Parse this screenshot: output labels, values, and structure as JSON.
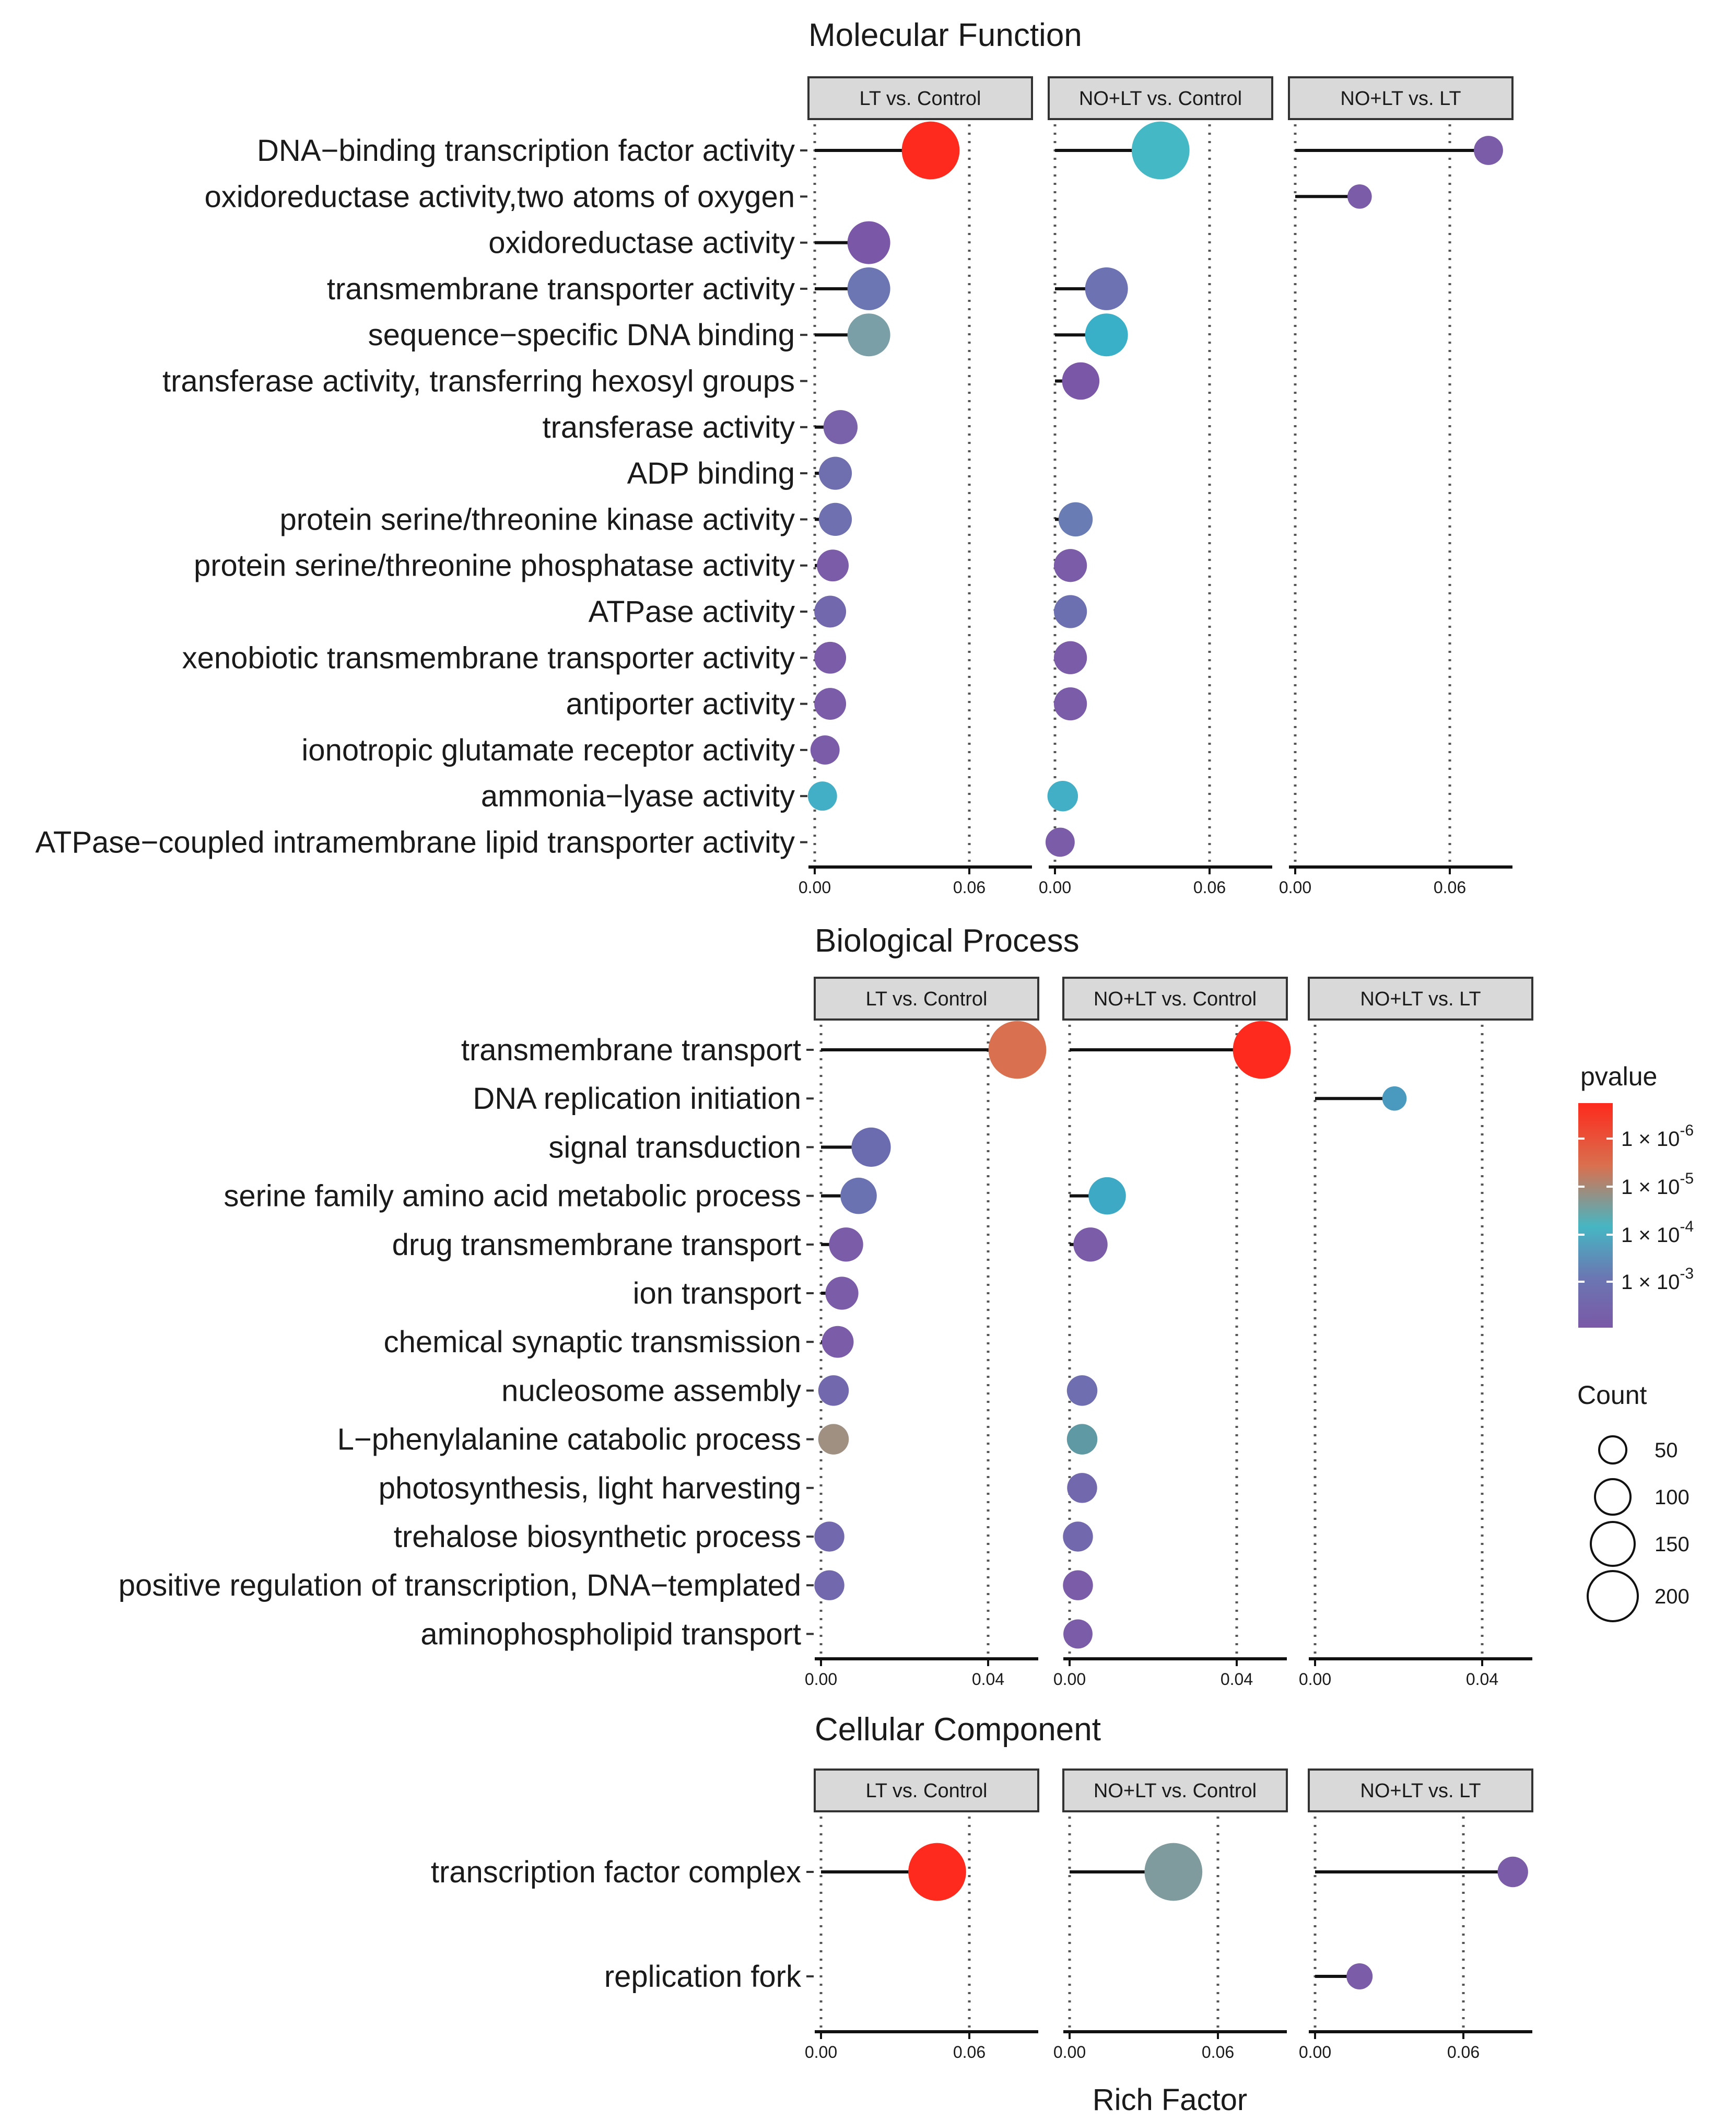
{
  "chart_data": {
    "type": "lollipop",
    "x_title": "Rich Factor",
    "legend": {
      "color_title": "pvalue",
      "color_ticks": [
        "1 × 10^-6",
        "1 × 10^-5",
        "1 × 10^-4",
        "1 × 10^-3"
      ],
      "color_scale": [
        "#fd2a1d",
        "#d9704f",
        "#46b6c3",
        "#6b76b2",
        "#7a58a7"
      ],
      "size_title": "Count",
      "size_values": [
        50,
        100,
        150,
        200
      ]
    },
    "facet_labels": [
      "LT vs. Control",
      "NO+LT vs. Control",
      "NO+LT vs. LT"
    ],
    "panels": [
      {
        "title": "Molecular Function",
        "x_ticks": [
          "0.00",
          "0.06"
        ],
        "xlim": [
          0,
          0.085
        ],
        "terms": [
          "DNA−binding transcription factor activity",
          "oxidoreductase activity,two atoms of oxygen",
          "oxidoreductase activity",
          "transmembrane transporter activity",
          "sequence−specific DNA binding",
          "transferase activity, transferring hexosyl groups",
          "transferase activity",
          "ADP binding",
          "protein serine/threonine kinase activity",
          "protein serine/threonine phosphatase activity",
          "ATPase activity",
          "xenobiotic transmembrane transporter activity",
          "antiporter activity",
          "ionotropic glutamate receptor activity",
          "ammonia−lyase activity",
          "ATPase−coupled intramembrane lipid transporter activity"
        ],
        "facets": [
          [
            {
              "term": 0,
              "x": 0.045,
              "count": 210,
              "color": "#fd2a1d"
            },
            {
              "term": 2,
              "x": 0.021,
              "count": 100,
              "color": "#7a58a7"
            },
            {
              "term": 3,
              "x": 0.021,
              "count": 100,
              "color": "#6b76b2"
            },
            {
              "term": 4,
              "x": 0.021,
              "count": 100,
              "color": "#7a9fa6"
            },
            {
              "term": 6,
              "x": 0.01,
              "count": 55,
              "color": "#7a62ab"
            },
            {
              "term": 7,
              "x": 0.008,
              "count": 50,
              "color": "#6f6fb0"
            },
            {
              "term": 8,
              "x": 0.008,
              "count": 50,
              "color": "#6e70b0"
            },
            {
              "term": 9,
              "x": 0.007,
              "count": 45,
              "color": "#7a5ca8"
            },
            {
              "term": 10,
              "x": 0.006,
              "count": 45,
              "color": "#7268ae"
            },
            {
              "term": 11,
              "x": 0.006,
              "count": 45,
              "color": "#7a5ca8"
            },
            {
              "term": 12,
              "x": 0.006,
              "count": 45,
              "color": "#7a5ca8"
            },
            {
              "term": 13,
              "x": 0.004,
              "count": 35,
              "color": "#7a5ca8"
            },
            {
              "term": 14,
              "x": 0.003,
              "count": 35,
              "color": "#42afc6"
            }
          ],
          [
            {
              "term": 0,
              "x": 0.041,
              "count": 210,
              "color": "#44b8c4"
            },
            {
              "term": 3,
              "x": 0.02,
              "count": 100,
              "color": "#6d73b2"
            },
            {
              "term": 4,
              "x": 0.02,
              "count": 100,
              "color": "#39b0c8"
            },
            {
              "term": 5,
              "x": 0.01,
              "count": 70,
              "color": "#7a58a7"
            },
            {
              "term": 8,
              "x": 0.008,
              "count": 55,
              "color": "#6a7cb4"
            },
            {
              "term": 9,
              "x": 0.006,
              "count": 50,
              "color": "#7a5ca8"
            },
            {
              "term": 10,
              "x": 0.006,
              "count": 50,
              "color": "#6c70b0"
            },
            {
              "term": 11,
              "x": 0.006,
              "count": 50,
              "color": "#7a5ca8"
            },
            {
              "term": 12,
              "x": 0.006,
              "count": 50,
              "color": "#7a5ca8"
            },
            {
              "term": 14,
              "x": 0.003,
              "count": 40,
              "color": "#42afc6"
            },
            {
              "term": 15,
              "x": 0.002,
              "count": 35,
              "color": "#7a5ca8"
            }
          ],
          [
            {
              "term": 0,
              "x": 0.075,
              "count": 35,
              "color": "#7a5ca8"
            },
            {
              "term": 1,
              "x": 0.025,
              "count": 20,
              "color": "#7a5ca8"
            }
          ]
        ]
      },
      {
        "title": "Biological Process",
        "x_ticks": [
          "0.00",
          "0.04"
        ],
        "xlim": [
          0,
          0.052
        ],
        "terms": [
          "transmembrane transport",
          "DNA replication initiation",
          "signal transduction",
          "serine family amino acid metabolic process",
          "drug transmembrane transport",
          "ion transport",
          "chemical synaptic transmission",
          "nucleosome assembly",
          "L−phenylalanine catabolic process",
          "photosynthesis, light harvesting",
          "trehalose biosynthetic process",
          "positive regulation of transcription, DNA−templated",
          "aminophospholipid transport"
        ],
        "facets": [
          [
            {
              "term": 0,
              "x": 0.047,
              "count": 210,
              "color": "#d9704f"
            },
            {
              "term": 2,
              "x": 0.012,
              "count": 80,
              "color": "#6b6cb0"
            },
            {
              "term": 3,
              "x": 0.009,
              "count": 65,
              "color": "#6b72b2"
            },
            {
              "term": 4,
              "x": 0.006,
              "count": 55,
              "color": "#7a5ca8"
            },
            {
              "term": 5,
              "x": 0.005,
              "count": 50,
              "color": "#7a5ca8"
            },
            {
              "term": 6,
              "x": 0.004,
              "count": 45,
              "color": "#7a5ca8"
            },
            {
              "term": 7,
              "x": 0.003,
              "count": 40,
              "color": "#7268ae"
            },
            {
              "term": 8,
              "x": 0.003,
              "count": 40,
              "color": "#a09082"
            },
            {
              "term": 10,
              "x": 0.002,
              "count": 38,
              "color": "#7268ae"
            },
            {
              "term": 11,
              "x": 0.002,
              "count": 38,
              "color": "#7268ae"
            }
          ],
          [
            {
              "term": 0,
              "x": 0.046,
              "count": 210,
              "color": "#fd2a1d"
            },
            {
              "term": 3,
              "x": 0.009,
              "count": 70,
              "color": "#3da9c4"
            },
            {
              "term": 4,
              "x": 0.005,
              "count": 55,
              "color": "#7a5ca8"
            },
            {
              "term": 7,
              "x": 0.003,
              "count": 40,
              "color": "#6e6eb0"
            },
            {
              "term": 8,
              "x": 0.003,
              "count": 40,
              "color": "#5f9aa4"
            },
            {
              "term": 9,
              "x": 0.003,
              "count": 38,
              "color": "#7268ae"
            },
            {
              "term": 10,
              "x": 0.002,
              "count": 38,
              "color": "#7268ae"
            },
            {
              "term": 11,
              "x": 0.002,
              "count": 38,
              "color": "#7a5ca8"
            },
            {
              "term": 12,
              "x": 0.002,
              "count": 35,
              "color": "#7a5ca8"
            }
          ],
          [
            {
              "term": 1,
              "x": 0.019,
              "count": 20,
              "color": "#4a9ac0"
            }
          ]
        ]
      },
      {
        "title": "Cellular Component",
        "x_ticks": [
          "0.00",
          "0.06"
        ],
        "xlim": [
          0,
          0.085
        ],
        "terms": [
          "transcription factor complex",
          "replication fork"
        ],
        "facets": [
          [
            {
              "term": 0,
              "x": 0.047,
              "count": 210,
              "color": "#fd2a1d"
            }
          ],
          [
            {
              "term": 0,
              "x": 0.042,
              "count": 210,
              "color": "#7f9b9e"
            }
          ],
          [
            {
              "term": 0,
              "x": 0.08,
              "count": 40,
              "color": "#7a5ca8"
            },
            {
              "term": 1,
              "x": 0.018,
              "count": 25,
              "color": "#7a5ca8"
            }
          ]
        ]
      }
    ]
  }
}
